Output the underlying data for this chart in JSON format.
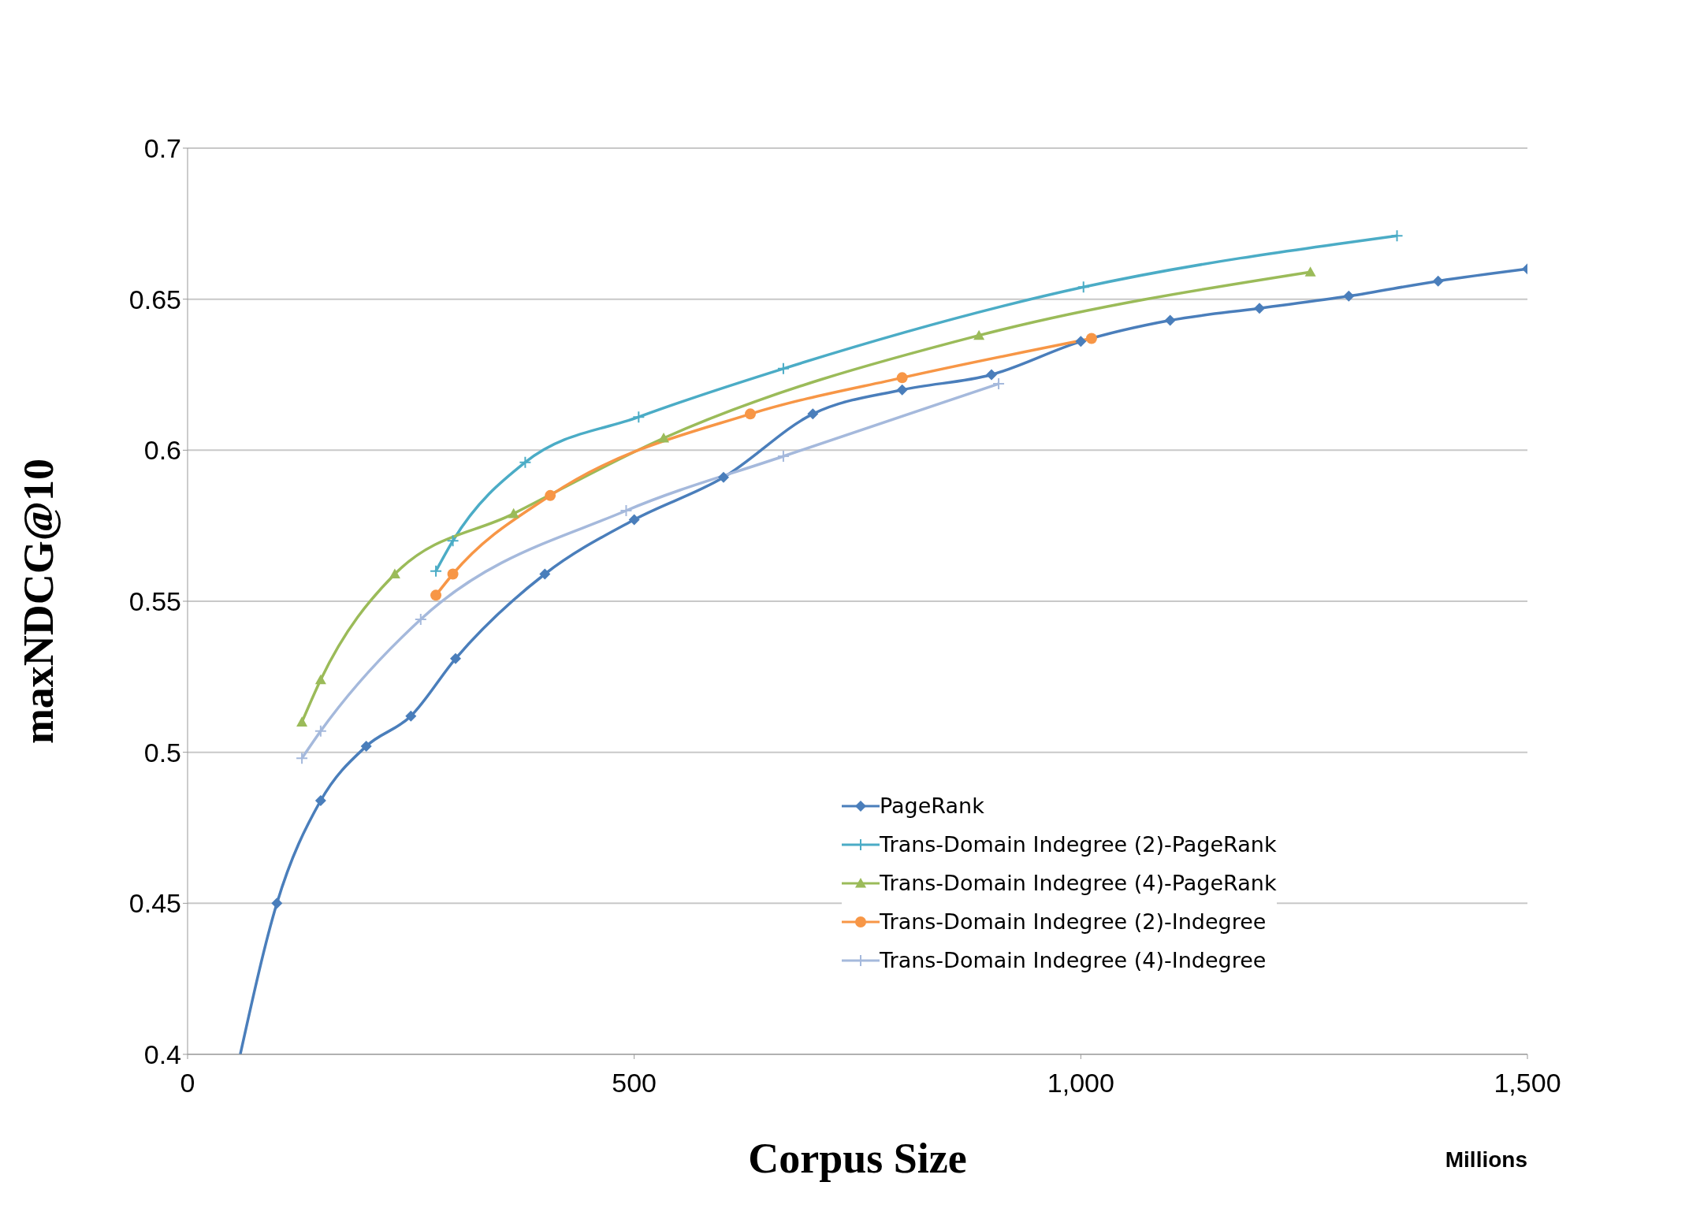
{
  "chart_data": {
    "type": "line",
    "xlabel": "Corpus Size",
    "ylabel": "maxNDCG@10",
    "annotations": [
      "Millions"
    ],
    "xlim": [
      0,
      1500
    ],
    "xticks": [
      0,
      {
        "value": 500,
        "label": "500"
      },
      {
        "value": 1000,
        "label": "1,000"
      },
      {
        "value": 1500,
        "label": "1,500"
      }
    ],
    "ylim": [
      0.4,
      0.7
    ],
    "yticks": [
      0.4,
      0.45,
      0.5,
      0.55,
      0.6,
      0.65,
      0.7
    ],
    "grid": "y",
    "legend": "bottom right",
    "series": [
      {
        "name": "PageRank",
        "color": "#4a7ebb",
        "marker": "diamond",
        "x": [
          59,
          100,
          149,
          200,
          250,
          300,
          400,
          500,
          600,
          700,
          800,
          900,
          1000,
          1100,
          1200,
          1300,
          1400,
          1500
        ],
        "values": [
          0.4,
          0.45,
          0.484,
          0.502,
          0.512,
          0.531,
          0.559,
          0.577,
          0.591,
          0.612,
          0.62,
          0.625,
          0.636,
          0.643,
          0.647,
          0.651,
          0.656,
          0.66
        ]
      },
      {
        "name": "Trans-Domain Indegree (2)-PageRank",
        "color": "#4bacc6",
        "marker": "cross",
        "x": [
          278,
          297,
          378,
          505,
          667,
          1003,
          1354
        ],
        "values": [
          0.56,
          0.57,
          0.596,
          0.611,
          0.627,
          0.654,
          0.671
        ]
      },
      {
        "name": "Trans-Domain Indegree (4)-PageRank",
        "color": "#9bbb59",
        "marker": "triangle",
        "x": [
          128,
          149,
          232,
          365,
          533,
          886,
          1257
        ],
        "values": [
          0.51,
          0.524,
          0.559,
          0.579,
          0.604,
          0.638,
          0.659
        ]
      },
      {
        "name": "Trans-Domain Indegree (2)-Indegree",
        "color": "#f79646",
        "marker": "circle",
        "x": [
          278,
          297,
          406,
          630,
          800,
          1012
        ],
        "values": [
          0.552,
          0.559,
          0.585,
          0.612,
          0.624,
          0.637
        ]
      },
      {
        "name": "Trans-Domain Indegree (4)-Indegree",
        "color": "#a5b9dc",
        "marker": "cross",
        "x": [
          128,
          149,
          261,
          491,
          667,
          908
        ],
        "values": [
          0.498,
          0.507,
          0.544,
          0.58,
          0.598,
          0.622
        ]
      }
    ]
  }
}
